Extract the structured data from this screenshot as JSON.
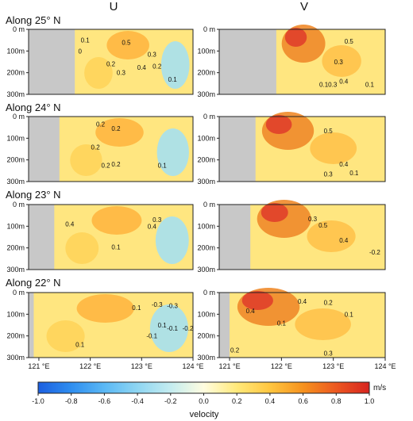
{
  "chart_data": {
    "type": "heatmap",
    "column_titles": [
      "U",
      "V"
    ],
    "row_titles": [
      "Along 25° N",
      "Along 24° N",
      "Along 23° N",
      "Along 22° N"
    ],
    "ylabel_ticks": [
      "0 m",
      "100m",
      "200m",
      "300m"
    ],
    "ylim": [
      0,
      300
    ],
    "xlim": [
      120.8,
      124.0
    ],
    "x_ticks": [
      121,
      122,
      123,
      124
    ],
    "x_tick_labels": [
      "121 °E",
      "122 °E",
      "123 °E",
      "124 °E"
    ],
    "colorbar": {
      "label": "velocity",
      "unit": "m/s",
      "range": [
        -1.0,
        1.0
      ],
      "ticks": [
        -1.0,
        -0.8,
        -0.6,
        -0.4,
        -0.2,
        0.0,
        0.2,
        0.4,
        0.6,
        0.8,
        1.0
      ],
      "tick_labels": [
        "-1.0",
        "-0.8",
        "-0.6",
        "-0.4",
        "-0.2",
        "0.0",
        "0.2",
        "0.4",
        "0.6",
        "0.8",
        "1.0"
      ],
      "colors": [
        "#1c5fe0",
        "#2f8ef0",
        "#5ab8f5",
        "#8fd6f2",
        "#c4ecf0",
        "#fffde0",
        "#ffe97a",
        "#ffc640",
        "#f6921e",
        "#ec5820",
        "#d7241f"
      ]
    },
    "panels": [
      {
        "row": 0,
        "var": "U",
        "land_west": 121.7,
        "contour_labels": [
          {
            "lon": 122.7,
            "depth": 60,
            "value": "0.5"
          },
          {
            "lon": 123.2,
            "depth": 115,
            "value": "0.3"
          },
          {
            "lon": 122.4,
            "depth": 160,
            "value": "0.2"
          },
          {
            "lon": 122.6,
            "depth": 200,
            "value": "0.3"
          },
          {
            "lon": 123.0,
            "depth": 175,
            "value": "0.4"
          },
          {
            "lon": 123.3,
            "depth": 170,
            "value": "0.2"
          },
          {
            "lon": 123.6,
            "depth": 230,
            "value": "0.1"
          },
          {
            "lon": 121.9,
            "depth": 50,
            "value": "0.1"
          },
          {
            "lon": 121.8,
            "depth": 100,
            "value": "0"
          }
        ]
      },
      {
        "row": 0,
        "var": "V",
        "land_west": 121.9,
        "contour_labels": [
          {
            "lon": 123.3,
            "depth": 55,
            "value": "0.5"
          },
          {
            "lon": 123.1,
            "depth": 150,
            "value": "0.3"
          },
          {
            "lon": 123.2,
            "depth": 240,
            "value": "0.4"
          },
          {
            "lon": 122.9,
            "depth": 255,
            "value": "0.10.3"
          },
          {
            "lon": 123.7,
            "depth": 255,
            "value": "0.1"
          }
        ]
      },
      {
        "row": 1,
        "var": "U",
        "land_west": 121.4,
        "contour_labels": [
          {
            "lon": 122.2,
            "depth": 35,
            "value": "0.2"
          },
          {
            "lon": 122.5,
            "depth": 55,
            "value": "0.2"
          },
          {
            "lon": 122.1,
            "depth": 140,
            "value": "0.2"
          },
          {
            "lon": 122.5,
            "depth": 220,
            "value": "0.2"
          },
          {
            "lon": 122.3,
            "depth": 225,
            "value": "0.2"
          },
          {
            "lon": 123.4,
            "depth": 225,
            "value": "0.1"
          }
        ]
      },
      {
        "row": 1,
        "var": "V",
        "land_west": 121.5,
        "contour_labels": [
          {
            "lon": 122.9,
            "depth": 65,
            "value": "0.5"
          },
          {
            "lon": 123.2,
            "depth": 220,
            "value": "0.4"
          },
          {
            "lon": 122.9,
            "depth": 265,
            "value": "0.3"
          },
          {
            "lon": 123.4,
            "depth": 260,
            "value": "0.1"
          }
        ]
      },
      {
        "row": 2,
        "var": "U",
        "land_west": 121.3,
        "contour_labels": [
          {
            "lon": 121.6,
            "depth": 90,
            "value": "0.4"
          },
          {
            "lon": 123.3,
            "depth": 70,
            "value": "0.3"
          },
          {
            "lon": 123.2,
            "depth": 100,
            "value": "0.4"
          },
          {
            "lon": 122.5,
            "depth": 195,
            "value": "0.1"
          }
        ]
      },
      {
        "row": 2,
        "var": "V",
        "land_west": 121.4,
        "contour_labels": [
          {
            "lon": 122.6,
            "depth": 65,
            "value": "0.3"
          },
          {
            "lon": 122.8,
            "depth": 95,
            "value": "0.5"
          },
          {
            "lon": 123.2,
            "depth": 165,
            "value": "0.4"
          },
          {
            "lon": 123.8,
            "depth": 220,
            "value": "-0.2"
          }
        ]
      },
      {
        "row": 3,
        "var": "U",
        "land_west": 120.9,
        "contour_labels": [
          {
            "lon": 122.9,
            "depth": 70,
            "value": "0.1"
          },
          {
            "lon": 123.3,
            "depth": 55,
            "value": "-0.3"
          },
          {
            "lon": 123.6,
            "depth": 60,
            "value": "-0.3"
          },
          {
            "lon": 123.4,
            "depth": 150,
            "value": "0.1"
          },
          {
            "lon": 123.6,
            "depth": 165,
            "value": "-0.1"
          },
          {
            "lon": 123.9,
            "depth": 165,
            "value": "-0.2"
          },
          {
            "lon": 123.2,
            "depth": 200,
            "value": "-0.1"
          },
          {
            "lon": 121.8,
            "depth": 240,
            "value": "0.1"
          }
        ]
      },
      {
        "row": 3,
        "var": "V",
        "land_west": 121.0,
        "contour_labels": [
          {
            "lon": 121.4,
            "depth": 85,
            "value": "0.4"
          },
          {
            "lon": 122.4,
            "depth": 40,
            "value": "0.4"
          },
          {
            "lon": 122.9,
            "depth": 45,
            "value": "0.2"
          },
          {
            "lon": 123.3,
            "depth": 100,
            "value": "0.1"
          },
          {
            "lon": 122.0,
            "depth": 140,
            "value": "0.1"
          },
          {
            "lon": 121.1,
            "depth": 265,
            "value": "0.2"
          },
          {
            "lon": 122.9,
            "depth": 280,
            "value": "0.3"
          }
        ]
      }
    ]
  }
}
